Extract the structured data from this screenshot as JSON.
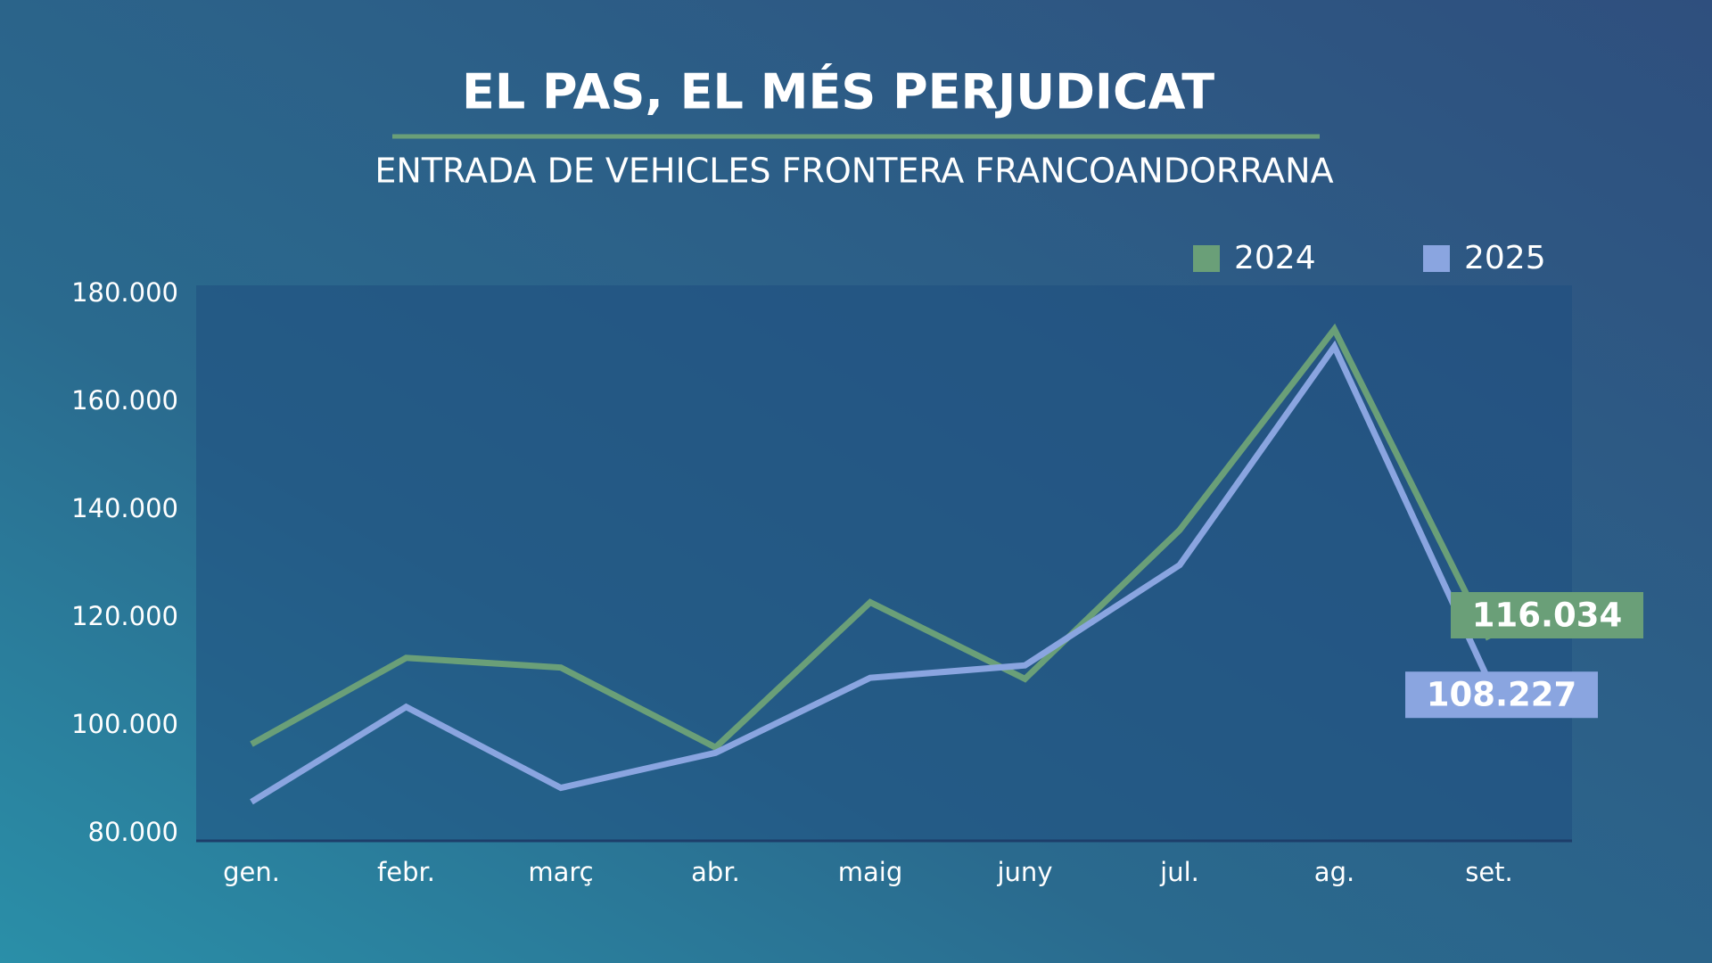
{
  "chart_data": {
    "type": "line",
    "title": "EL PAS, EL MÉS PERJUDICAT",
    "subtitle": "ENTRADA DE VEHICLES FRONTERA FRANCOANDORRANA",
    "categories": [
      "gen.",
      "febr.",
      "març",
      "abr.",
      "maig",
      "juny",
      "jul.",
      "ag.",
      "set."
    ],
    "series": [
      {
        "name": "2024",
        "color": "#6a9f78",
        "values": [
          96600,
          112600,
          110800,
          96000,
          122900,
          108700,
          136300,
          173500,
          116034
        ],
        "value_labels": [
          null,
          null,
          null,
          null,
          null,
          null,
          null,
          null,
          "116.034"
        ]
      },
      {
        "name": "2025",
        "color": "#8aa5e0",
        "values": [
          85900,
          103500,
          88500,
          95000,
          108900,
          111200,
          129800,
          170300,
          108227
        ],
        "value_labels": [
          null,
          null,
          null,
          null,
          null,
          null,
          null,
          null,
          "108.227"
        ]
      }
    ],
    "ylim": [
      80000,
      180000
    ],
    "yticks": [
      {
        "value": 80000,
        "label": "80.000"
      },
      {
        "value": 100000,
        "label": "100.000"
      },
      {
        "value": 120000,
        "label": "120.000"
      },
      {
        "value": 140000,
        "label": "140.000"
      },
      {
        "value": 160000,
        "label": "160.000"
      },
      {
        "value": 180000,
        "label": "180.000"
      }
    ],
    "grid": false
  }
}
